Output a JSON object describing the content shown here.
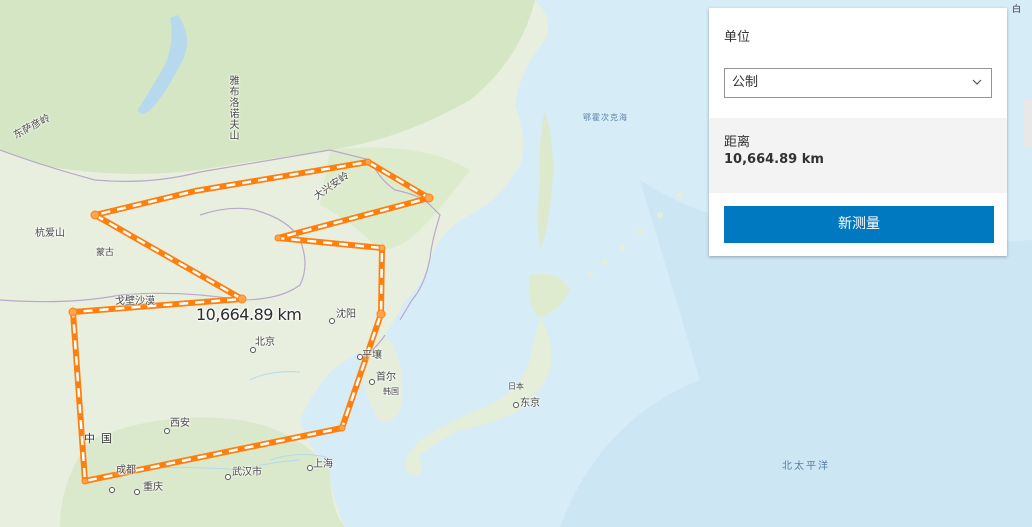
{
  "map": {
    "labels": {
      "dongsayan": "东萨彦岭",
      "yablonovy": "雅布洛诺夫山",
      "hangai": "杭爱山",
      "mongolia": "蒙古",
      "gobi": "戈壁沙漠",
      "daxinganling": "大兴安岭",
      "shenyang": "沈阳",
      "beijing": "北京",
      "pyongyang": "平壤",
      "seoul": "首尔",
      "korea": "韩国",
      "xian": "西安",
      "china": "中国",
      "chengdu": "成都",
      "chongqing": "重庆",
      "wuhan": "武汉市",
      "shanghai": "上海",
      "japan": "日本",
      "tokyo": "东京",
      "okhotsk": "鄂霍次克海",
      "pacific": "北太平洋"
    },
    "measure_label": "10,664.89 km",
    "line_color": "#ff7f0e"
  },
  "panel": {
    "unit_title": "单位",
    "unit_selected": "公制",
    "result_label": "距离",
    "result_value": "10,664.89 km",
    "new_button": "新测量",
    "button_color": "#0079c1"
  },
  "corner_text": "白"
}
